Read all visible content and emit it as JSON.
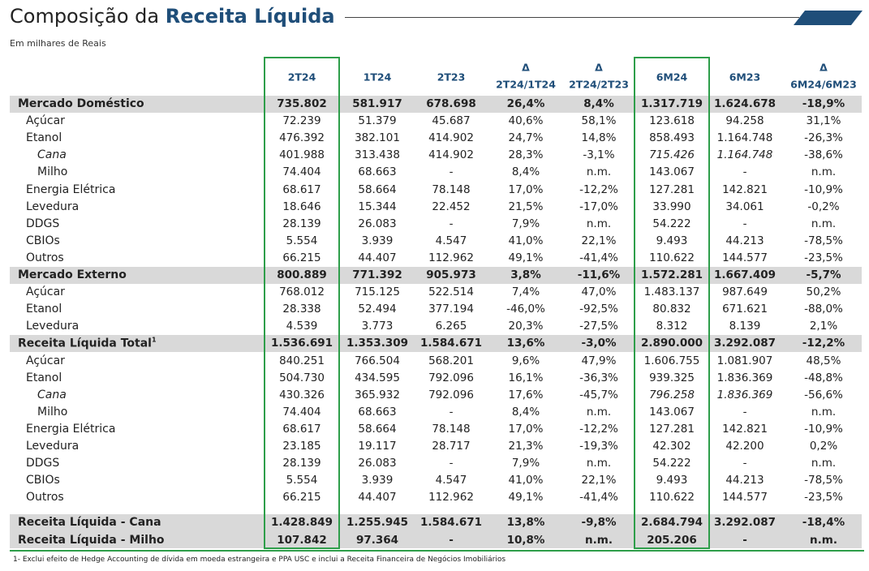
{
  "header": {
    "title_plain": "Composição da",
    "title_bold": "Receita Líquida",
    "subtitle": "Em milhares de Reais"
  },
  "table": {
    "columns": [
      {
        "label": "2T24",
        "boxed": true
      },
      {
        "label": "1T24"
      },
      {
        "label": "2T23"
      },
      {
        "symbol": "Δ",
        "label": "2T24/1T24"
      },
      {
        "symbol": "Δ",
        "label": "2T24/2T23"
      },
      {
        "label": "6M24",
        "boxed": true
      },
      {
        "label": "6M23"
      },
      {
        "symbol": "Δ",
        "label": "6M24/6M23"
      }
    ],
    "rows": [
      {
        "kind": "section",
        "label": "Mercado Doméstico",
        "values": [
          "735.802",
          "581.917",
          "678.698",
          "26,4%",
          "8,4%",
          "1.317.719",
          "1.624.678",
          "-18,9%"
        ]
      },
      {
        "kind": "item",
        "label": "Açúcar",
        "values": [
          "72.239",
          "51.379",
          "45.687",
          "40,6%",
          "58,1%",
          "123.618",
          "94.258",
          "31,1%"
        ]
      },
      {
        "kind": "item",
        "label": "Etanol",
        "values": [
          "476.392",
          "382.101",
          "414.902",
          "24,7%",
          "14,8%",
          "858.493",
          "1.164.748",
          "-26,3%"
        ]
      },
      {
        "kind": "sub",
        "italic": true,
        "label": "Cana",
        "values": [
          "401.988",
          "313.438",
          "414.902",
          "28,3%",
          "-3,1%",
          "715.426",
          "1.164.748",
          "-38,6%"
        ]
      },
      {
        "kind": "sub",
        "label": "Milho",
        "values": [
          "74.404",
          "68.663",
          "-",
          "8,4%",
          "n.m.",
          "143.067",
          "-",
          "n.m."
        ]
      },
      {
        "kind": "item",
        "label": "Energia Elétrica",
        "values": [
          "68.617",
          "58.664",
          "78.148",
          "17,0%",
          "-12,2%",
          "127.281",
          "142.821",
          "-10,9%"
        ]
      },
      {
        "kind": "item",
        "label": "Levedura",
        "values": [
          "18.646",
          "15.344",
          "22.452",
          "21,5%",
          "-17,0%",
          "33.990",
          "34.061",
          "-0,2%"
        ]
      },
      {
        "kind": "item",
        "label": "DDGS",
        "values": [
          "28.139",
          "26.083",
          "-",
          "7,9%",
          "n.m.",
          "54.222",
          "-",
          "n.m."
        ]
      },
      {
        "kind": "item",
        "label": "CBIOs",
        "values": [
          "5.554",
          "3.939",
          "4.547",
          "41,0%",
          "22,1%",
          "9.493",
          "44.213",
          "-78,5%"
        ]
      },
      {
        "kind": "item",
        "label": "Outros",
        "values": [
          "66.215",
          "44.407",
          "112.962",
          "49,1%",
          "-41,4%",
          "110.622",
          "144.577",
          "-23,5%"
        ]
      },
      {
        "kind": "section",
        "label": "Mercado Externo",
        "values": [
          "800.889",
          "771.392",
          "905.973",
          "3,8%",
          "-11,6%",
          "1.572.281",
          "1.667.409",
          "-5,7%"
        ]
      },
      {
        "kind": "item",
        "label": "Açúcar",
        "values": [
          "768.012",
          "715.125",
          "522.514",
          "7,4%",
          "47,0%",
          "1.483.137",
          "987.649",
          "50,2%"
        ]
      },
      {
        "kind": "item",
        "label": "Etanol",
        "values": [
          "28.338",
          "52.494",
          "377.194",
          "-46,0%",
          "-92,5%",
          "80.832",
          "671.621",
          "-88,0%"
        ]
      },
      {
        "kind": "item",
        "label": "Levedura",
        "values": [
          "4.539",
          "3.773",
          "6.265",
          "20,3%",
          "-27,5%",
          "8.312",
          "8.139",
          "2,1%"
        ]
      },
      {
        "kind": "section",
        "label": "Receita Líquida Total",
        "note": "1",
        "values": [
          "1.536.691",
          "1.353.309",
          "1.584.671",
          "13,6%",
          "-3,0%",
          "2.890.000",
          "3.292.087",
          "-12,2%"
        ]
      },
      {
        "kind": "item",
        "label": "Açúcar",
        "values": [
          "840.251",
          "766.504",
          "568.201",
          "9,6%",
          "47,9%",
          "1.606.755",
          "1.081.907",
          "48,5%"
        ]
      },
      {
        "kind": "item",
        "label": "Etanol",
        "values": [
          "504.730",
          "434.595",
          "792.096",
          "16,1%",
          "-36,3%",
          "939.325",
          "1.836.369",
          "-48,8%"
        ]
      },
      {
        "kind": "sub",
        "italic": true,
        "label": "Cana",
        "values": [
          "430.326",
          "365.932",
          "792.096",
          "17,6%",
          "-45,7%",
          "796.258",
          "1.836.369",
          "-56,6%"
        ]
      },
      {
        "kind": "sub",
        "label": "Milho",
        "values": [
          "74.404",
          "68.663",
          "-",
          "8,4%",
          "n.m.",
          "143.067",
          "-",
          "n.m."
        ]
      },
      {
        "kind": "item",
        "label": "Energia Elétrica",
        "values": [
          "68.617",
          "58.664",
          "78.148",
          "17,0%",
          "-12,2%",
          "127.281",
          "142.821",
          "-10,9%"
        ]
      },
      {
        "kind": "item",
        "label": "Levedura",
        "values": [
          "23.185",
          "19.117",
          "28.717",
          "21,3%",
          "-19,3%",
          "42.302",
          "42.200",
          "0,2%"
        ]
      },
      {
        "kind": "item",
        "label": "DDGS",
        "values": [
          "28.139",
          "26.083",
          "-",
          "7,9%",
          "n.m.",
          "54.222",
          "-",
          "n.m."
        ]
      },
      {
        "kind": "item",
        "label": "CBIOs",
        "values": [
          "5.554",
          "3.939",
          "4.547",
          "41,0%",
          "22,1%",
          "9.493",
          "44.213",
          "-78,5%"
        ]
      },
      {
        "kind": "item",
        "label": "Outros",
        "values": [
          "66.215",
          "44.407",
          "112.962",
          "49,1%",
          "-41,4%",
          "110.622",
          "144.577",
          "-23,5%"
        ]
      },
      {
        "kind": "total",
        "label": "Receita Líquida - Cana",
        "values": [
          "1.428.849",
          "1.255.945",
          "1.584.671",
          "13,8%",
          "-9,8%",
          "2.684.794",
          "3.292.087",
          "-18,4%"
        ]
      },
      {
        "kind": "total",
        "label": "Receita Líquida - Milho",
        "values": [
          "107.842",
          "97.364",
          "-",
          "10,8%",
          "n.m.",
          "205.206",
          "-",
          "n.m."
        ]
      }
    ]
  },
  "footnote": "1- Exclui efeito de Hedge Accounting de dívida em moeda estrangeira e PPA USC e inclui a Receita Financeira de Negócios Imobiliários"
}
